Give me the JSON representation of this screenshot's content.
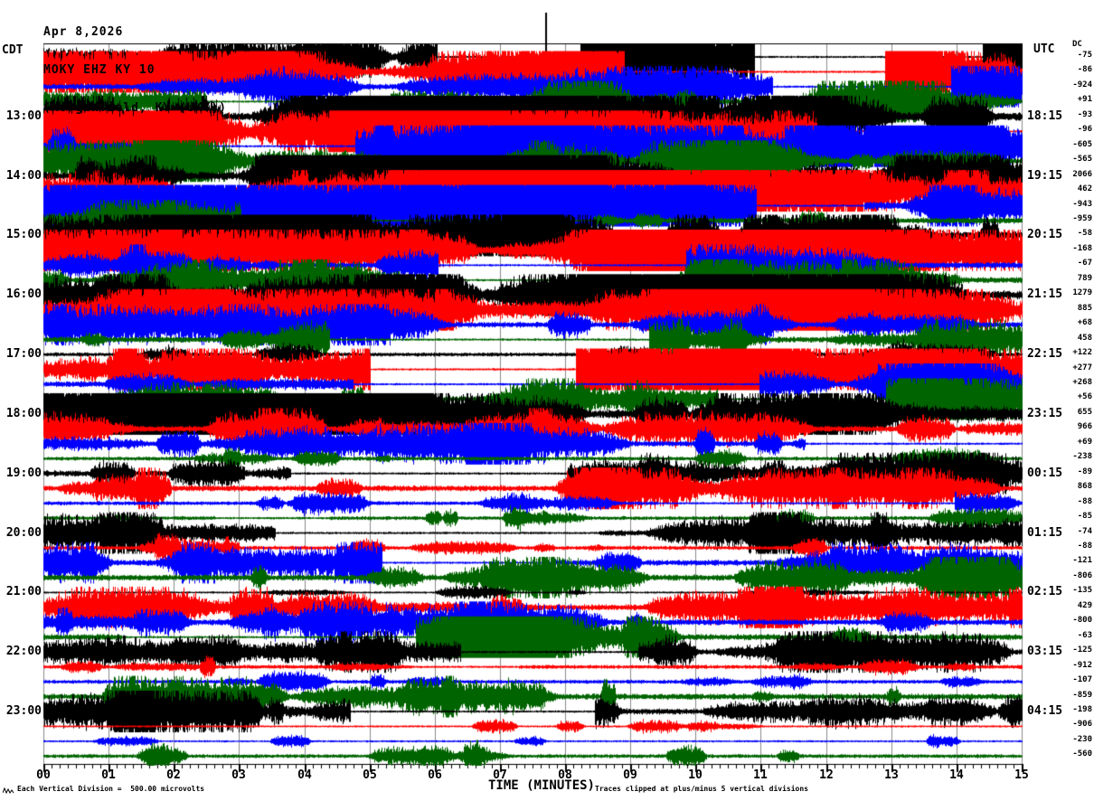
{
  "header": {
    "date": "Apr 8,2026",
    "station": "MOKY EHZ KY 10",
    "location": "(Morganfield, KY (UKY))"
  },
  "axes": {
    "left_tz": "CDT",
    "right_tz": "UTC",
    "right_dc_header": "DC",
    "x_title": "TIME (MINUTES)",
    "x_ticks": [
      "00",
      "01",
      "02",
      "03",
      "04",
      "05",
      "06",
      "07",
      "08",
      "09",
      "10",
      "11",
      "12",
      "13",
      "14",
      "15"
    ]
  },
  "footer": {
    "left": "Each Vertical Division =  500.00 microvolts",
    "right": "Traces clipped at plus/minus 5 vertical divisions"
  },
  "colors": {
    "color_map": {
      "black": "#000000",
      "red": "#ff0000",
      "blue": "#0000ff",
      "green": "#006400"
    },
    "grid": "#8a8a8a",
    "axis": "#000000"
  },
  "chart_data": {
    "type": "line",
    "subtype": "helicorder-seismogram",
    "title": "MOKY EHZ KY 10 (Morganfield, KY (UKY))",
    "xlabel": "TIME (MINUTES)",
    "x_range_minutes": [
      0,
      15
    ],
    "minutes_per_line": 15,
    "vertical_division_microvolts": 500.0,
    "clip_divisions": 5,
    "minor_ticks_per_minute": 8,
    "trace_color_cycle": [
      "black",
      "red",
      "blue",
      "green"
    ],
    "rows": [
      {
        "left_label": "",
        "right_label": "",
        "color": "black",
        "dc": "-75",
        "activity": 3,
        "spike_minute": 7.7,
        "quiet": [
          [
            10.9,
            14.4
          ]
        ]
      },
      {
        "left_label": "",
        "right_label": "",
        "color": "red",
        "dc": "-86",
        "activity": 3
      },
      {
        "left_label": "",
        "right_label": "",
        "color": "blue",
        "dc": "-924",
        "activity": 2
      },
      {
        "left_label": "",
        "right_label": "",
        "color": "green",
        "dc": "+91",
        "activity": 2
      },
      {
        "left_label": "13:00",
        "right_label": "18:15",
        "color": "black",
        "dc": "-93",
        "activity": 3
      },
      {
        "left_label": "",
        "right_label": "",
        "color": "red",
        "dc": "-96",
        "activity": 3
      },
      {
        "left_label": "",
        "right_label": "",
        "color": "blue",
        "dc": "-605",
        "activity": 3
      },
      {
        "left_label": "",
        "right_label": "",
        "color": "green",
        "dc": "-565",
        "activity": 2
      },
      {
        "left_label": "14:00",
        "right_label": "19:15",
        "color": "black",
        "dc": "2066",
        "activity": 3
      },
      {
        "left_label": "",
        "right_label": "",
        "color": "red",
        "dc": "462",
        "activity": 3
      },
      {
        "left_label": "",
        "right_label": "",
        "color": "blue",
        "dc": "-943",
        "activity": 3
      },
      {
        "left_label": "",
        "right_label": "",
        "color": "green",
        "dc": "-959",
        "activity": 2
      },
      {
        "left_label": "15:00",
        "right_label": "20:15",
        "color": "black",
        "dc": "-58",
        "activity": 3
      },
      {
        "left_label": "",
        "right_label": "",
        "color": "red",
        "dc": "-168",
        "activity": 3
      },
      {
        "left_label": "",
        "right_label": "",
        "color": "blue",
        "dc": "-67",
        "activity": 2
      },
      {
        "left_label": "",
        "right_label": "",
        "color": "green",
        "dc": "789",
        "activity": 2
      },
      {
        "left_label": "16:00",
        "right_label": "21:15",
        "color": "black",
        "dc": "1279",
        "activity": 3
      },
      {
        "left_label": "",
        "right_label": "",
        "color": "red",
        "dc": "885",
        "activity": 3
      },
      {
        "left_label": "",
        "right_label": "",
        "color": "blue",
        "dc": "+68",
        "activity": 2
      },
      {
        "left_label": "",
        "right_label": "",
        "color": "green",
        "dc": "458",
        "activity": 2
      },
      {
        "left_label": "17:00",
        "right_label": "22:15",
        "color": "black",
        "dc": "+122",
        "activity": 1
      },
      {
        "left_label": "",
        "right_label": "",
        "color": "red",
        "dc": "+277",
        "activity": 3
      },
      {
        "left_label": "",
        "right_label": "",
        "color": "blue",
        "dc": "+268",
        "activity": 2
      },
      {
        "left_label": "",
        "right_label": "",
        "color": "green",
        "dc": "+56",
        "activity": 2
      },
      {
        "left_label": "18:00",
        "right_label": "23:15",
        "color": "black",
        "dc": "655",
        "activity": 3
      },
      {
        "left_label": "",
        "right_label": "",
        "color": "red",
        "dc": "966",
        "activity": 2
      },
      {
        "left_label": "",
        "right_label": "",
        "color": "blue",
        "dc": "+69",
        "activity": 2
      },
      {
        "left_label": "",
        "right_label": "",
        "color": "green",
        "dc": "-238",
        "activity": 1
      },
      {
        "left_label": "19:00",
        "right_label": "00:15",
        "color": "black",
        "dc": "-89",
        "activity": 2
      },
      {
        "left_label": "",
        "right_label": "",
        "color": "red",
        "dc": "868",
        "activity": 2
      },
      {
        "left_label": "",
        "right_label": "",
        "color": "blue",
        "dc": "-88",
        "activity": 1
      },
      {
        "left_label": "",
        "right_label": "",
        "color": "green",
        "dc": "-85",
        "activity": 1
      },
      {
        "left_label": "20:00",
        "right_label": "01:15",
        "color": "black",
        "dc": "-74",
        "activity": 2
      },
      {
        "left_label": "",
        "right_label": "",
        "color": "red",
        "dc": "-88",
        "activity": 1
      },
      {
        "left_label": "",
        "right_label": "",
        "color": "blue",
        "dc": "-121",
        "activity": 2
      },
      {
        "left_label": "",
        "right_label": "",
        "color": "green",
        "dc": "-806",
        "activity": 2
      },
      {
        "left_label": "21:00",
        "right_label": "02:15",
        "color": "black",
        "dc": "-135",
        "activity": 0
      },
      {
        "left_label": "",
        "right_label": "",
        "color": "red",
        "dc": "429",
        "activity": 2
      },
      {
        "left_label": "",
        "right_label": "",
        "color": "blue",
        "dc": "-800",
        "activity": 2
      },
      {
        "left_label": "",
        "right_label": "",
        "color": "green",
        "dc": "-63",
        "activity": 2
      },
      {
        "left_label": "22:00",
        "right_label": "03:15",
        "color": "black",
        "dc": "-125",
        "activity": 2
      },
      {
        "left_label": "",
        "right_label": "",
        "color": "red",
        "dc": "-912",
        "activity": 1
      },
      {
        "left_label": "",
        "right_label": "",
        "color": "blue",
        "dc": "-107",
        "activity": 1
      },
      {
        "left_label": "",
        "right_label": "",
        "color": "green",
        "dc": "-859",
        "activity": 2
      },
      {
        "left_label": "23:00",
        "right_label": "04:15",
        "color": "black",
        "dc": "-198",
        "activity": 2
      },
      {
        "left_label": "",
        "right_label": "",
        "color": "red",
        "dc": "-906",
        "activity": 0
      },
      {
        "left_label": "",
        "right_label": "",
        "color": "blue",
        "dc": "-230",
        "activity": 0
      },
      {
        "left_label": "",
        "right_label": "",
        "color": "green",
        "dc": "-560",
        "activity": 1
      }
    ]
  }
}
